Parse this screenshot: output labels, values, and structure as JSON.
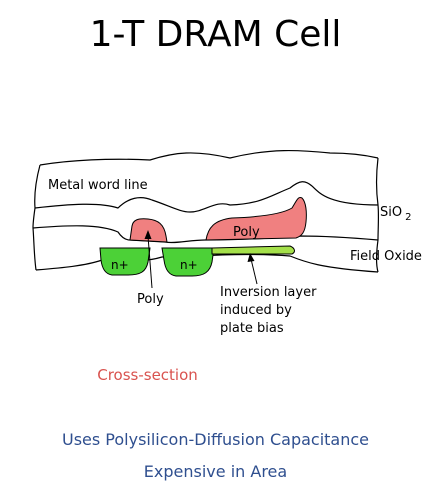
{
  "title": "1-T DRAM Cell",
  "labels": {
    "metal_word_line": "Metal word line",
    "sio2_main": "SiO",
    "sio2_sub": "2",
    "field_oxide": "Field Oxide",
    "poly_top": "Poly",
    "poly_bottom": "Poly",
    "n_plus_left": "n+",
    "n_plus_right": "n+",
    "inversion_line1": "Inversion layer",
    "inversion_line2": "induced by",
    "inversion_line3": "plate bias"
  },
  "captions": {
    "cross_section": "Cross-section",
    "uses": "Uses Polysilicon-Diffusion Capacitance",
    "expensive": "Expensive in Area"
  },
  "colors": {
    "poly": "#f08080",
    "n_plus": "#4cd137",
    "inversion": "#a4e04a",
    "caption_accent": "#d9534f",
    "caption_blue": "#2f4f8f",
    "line": "#000000"
  }
}
